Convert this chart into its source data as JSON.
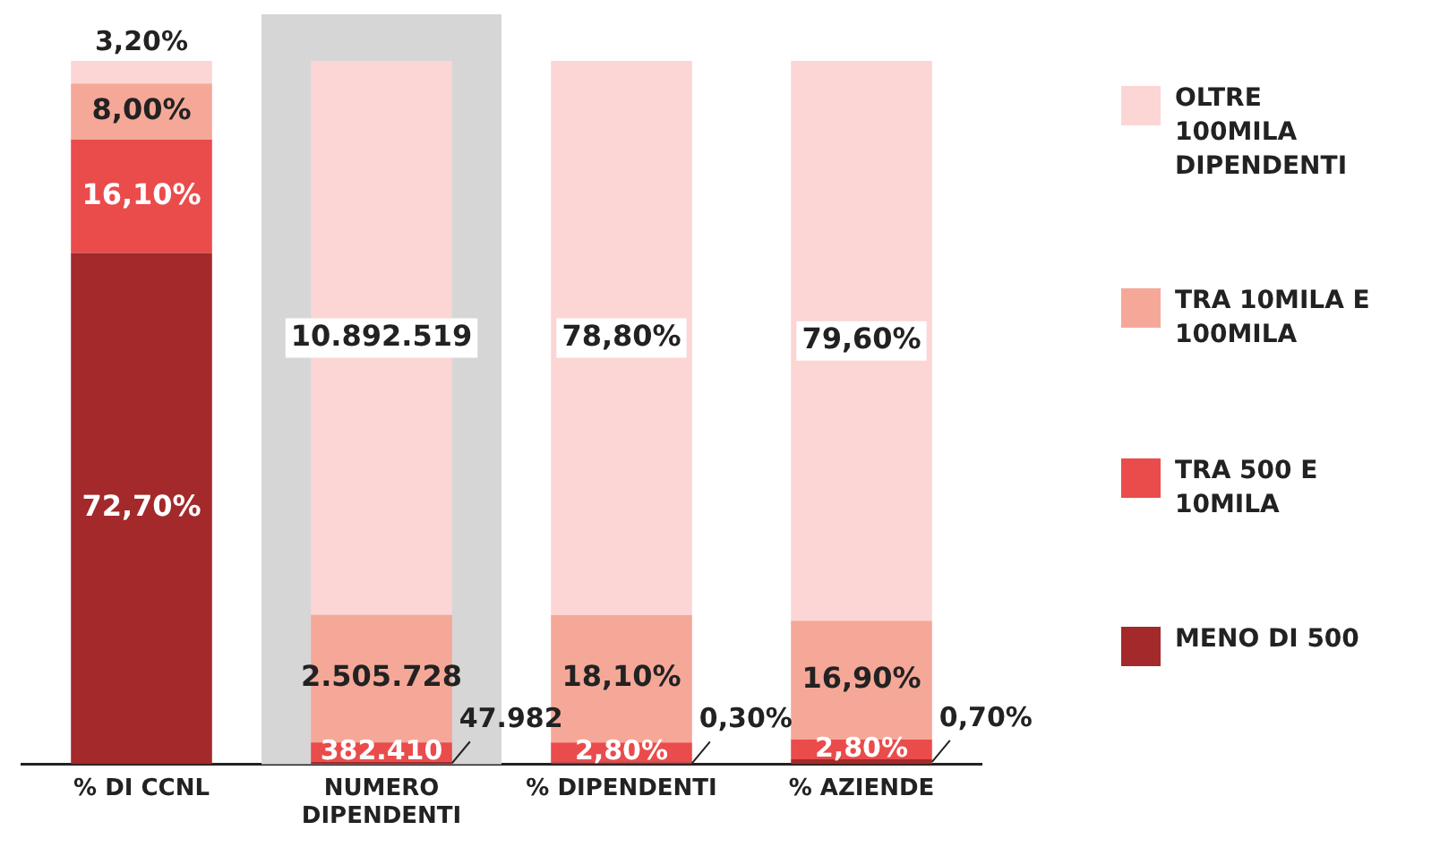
{
  "chart_data": {
    "type": "bar",
    "stacked": true,
    "data_labels": true,
    "legend": "right",
    "grid": false,
    "categories": [
      "% DI CCNL",
      "NUMERO DIPENDENTI",
      "% DIPENDENTI",
      "% AZIENDE"
    ],
    "series": [
      {
        "name": "MENO DI 500",
        "color": "#a3292b",
        "values": [
          72.7,
          null,
          0.3,
          0.7
        ],
        "value_labels": [
          "72,70%",
          null,
          "0,30%",
          "0,70%"
        ]
      },
      {
        "name": "TRA 500 E 10MILA",
        "color": "#ea4b4b",
        "values": [
          16.1,
          null,
          2.8,
          2.8
        ],
        "value_labels": [
          "16,10%",
          null,
          "2,80%",
          "2,80%"
        ]
      },
      {
        "name": "TRA 10MILA E 100MILA",
        "color": "#f5a898",
        "values": [
          8.0,
          null,
          18.1,
          16.9
        ],
        "value_labels": [
          "8,00%",
          null,
          "18,10%",
          "16,90%"
        ]
      },
      {
        "name": "OLTRE 100MILA DIPENDENTI",
        "color": "#fbd6d4",
        "values": [
          3.2,
          null,
          78.8,
          79.6
        ],
        "value_labels": [
          "3,20%",
          null,
          "78,80%",
          "79,60%"
        ]
      },
      {
        "axis": "y2",
        "color": "#a3292b",
        "values": [
          null,
          47982,
          null,
          null
        ],
        "value_labels": [
          null,
          "47.982",
          null,
          null
        ]
      },
      {
        "axis": "y2",
        "color": "#ea4b4b",
        "values": [
          null,
          382410,
          null,
          null
        ],
        "value_labels": [
          null,
          "382.410",
          null,
          null
        ]
      },
      {
        "axis": "y2",
        "color": "#f5a898",
        "values": [
          null,
          2505728,
          null,
          null
        ],
        "value_labels": [
          null,
          "2.505.728",
          null,
          null
        ]
      },
      {
        "axis": "y2",
        "color": "#fbd6d4",
        "values": [
          null,
          10892519,
          null,
          null
        ],
        "value_labels": [
          null,
          "10.892.519",
          null,
          null
        ]
      }
    ],
    "bands": [
      {
        "axis": "x",
        "from": "NUMERO DIPENDENTI",
        "to": "NUMERO DIPENDENTI",
        "color": "#d6d6d6"
      }
    ]
  }
}
